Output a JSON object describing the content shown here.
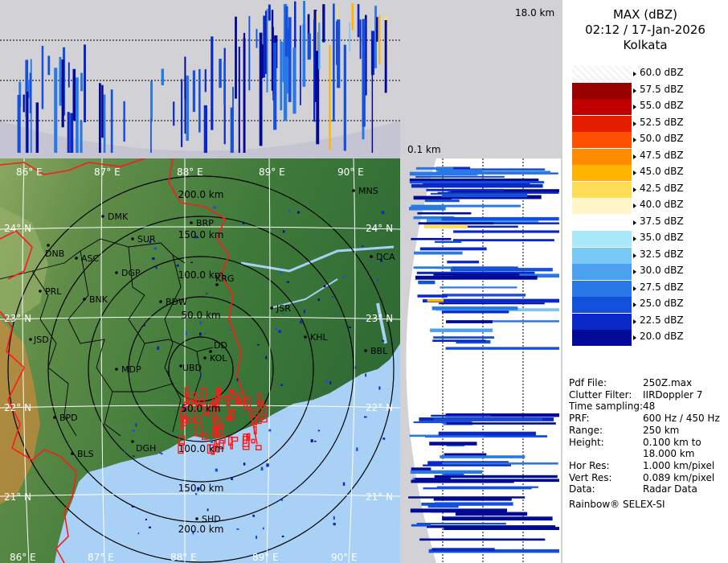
{
  "header": {
    "product": "MAX (dBZ)",
    "datetime": "02:12 / 17-Jan-2026",
    "station": "Kolkata"
  },
  "profile_labels": {
    "top_height": "18.0 km",
    "bottom_height": "0.1 km"
  },
  "color_scale": [
    {
      "label": "60.0 dBZ",
      "color": "#ffffff"
    },
    {
      "label": "57.5 dBZ",
      "color": "#9b0000"
    },
    {
      "label": "55.0 dBZ",
      "color": "#c00000"
    },
    {
      "label": "52.5 dBZ",
      "color": "#e61e00"
    },
    {
      "label": "50.0 dBZ",
      "color": "#ff5000"
    },
    {
      "label": "47.5 dBZ",
      "color": "#ff8c00"
    },
    {
      "label": "45.0 dBZ",
      "color": "#ffb400"
    },
    {
      "label": "42.5 dBZ",
      "color": "#ffdc5a"
    },
    {
      "label": "40.0 dBZ",
      "color": "#fff5c8"
    },
    {
      "label": "37.5 dBZ",
      "color": "#ffffff"
    },
    {
      "label": "35.0 dBZ",
      "color": "#a8e8f8"
    },
    {
      "label": "32.5 dBZ",
      "color": "#78c8f5"
    },
    {
      "label": "30.0 dBZ",
      "color": "#4ba0f0"
    },
    {
      "label": "27.5 dBZ",
      "color": "#2878e6"
    },
    {
      "label": "25.0 dBZ",
      "color": "#1450dc"
    },
    {
      "label": "22.5 dBZ",
      "color": "#0a28c8"
    },
    {
      "label": "20.0 dBZ",
      "color": "#000a96"
    }
  ],
  "info": [
    {
      "key": "Pdf File:",
      "value": "250Z.max"
    },
    {
      "key": "Clutter Filter:",
      "value": "IIRDoppler 7"
    },
    {
      "key": "Time sampling:",
      "value": "48"
    },
    {
      "key": "PRF:",
      "value": "600 Hz / 450 Hz"
    },
    {
      "key": "Range:",
      "value": "250 km"
    },
    {
      "key": "Height:",
      "value": "0.100 km to"
    },
    {
      "key": "",
      "value": "18.000 km"
    },
    {
      "key": "Hor Res:",
      "value": "1.000 km/pixel"
    },
    {
      "key": "Vert Res:",
      "value": "0.089 km/pixel"
    },
    {
      "key": "Data:",
      "value": "Radar Data"
    }
  ],
  "vendor": "Rainbow® SELEX-SI",
  "map": {
    "lon_labels": [
      "86° E",
      "87° E",
      "88° E",
      "89° E",
      "90° E"
    ],
    "lat_labels": [
      "24° N",
      "23° N",
      "22° N",
      "21° N"
    ],
    "range_labels": [
      "200.0 km",
      "150.0 km",
      "100.0 km",
      "50.0 km",
      "50.0 km",
      "100.0 km",
      "150.0 km",
      "200.0 km"
    ],
    "cities": [
      "MNS",
      "DMK",
      "BRP",
      "DNB",
      "SUR",
      "ASC",
      "DGP",
      "DCA",
      "KRG",
      "PRL",
      "BNK",
      "BDW",
      "JSR",
      "KHL",
      "JSD",
      "DD",
      "KOL",
      "BBL",
      "MDP",
      "UBD",
      "BPD",
      "DGH",
      "BLS",
      "SHD"
    ],
    "colors": {
      "sea": "#a9d0f5",
      "land_green": "#3c7838",
      "boundary": "#ff1a1a",
      "district": "#000000"
    }
  }
}
